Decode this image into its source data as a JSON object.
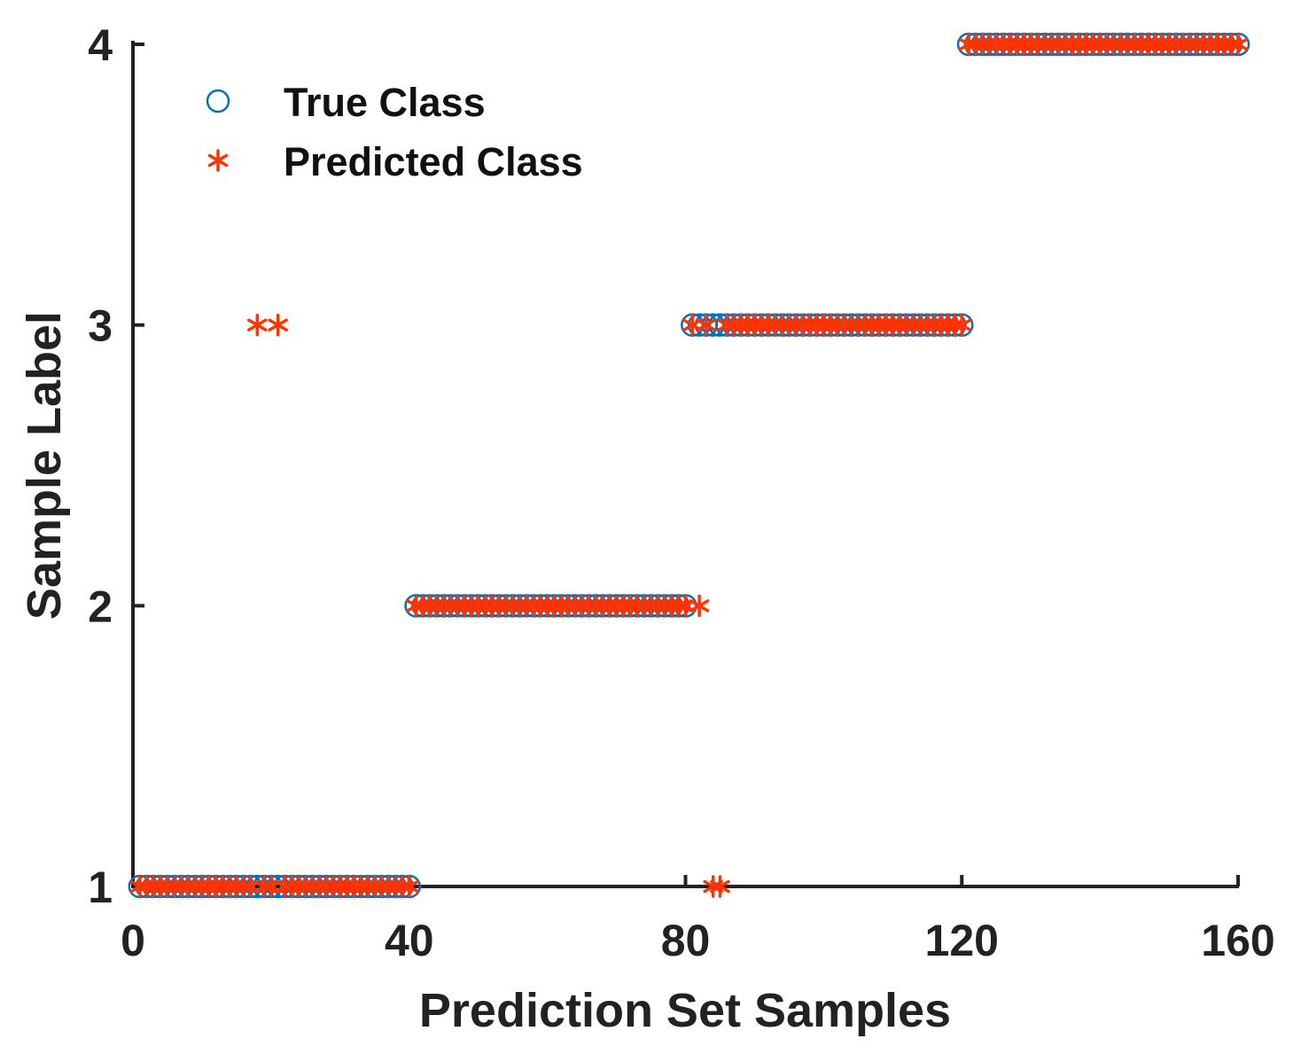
{
  "chart_data": {
    "type": "scatter",
    "title": "",
    "xlabel": "Prediction Set Samples",
    "ylabel": "Sample Label",
    "xlim": [
      0,
      160
    ],
    "ylim": [
      1,
      4
    ],
    "xticks": [
      0,
      40,
      80,
      120,
      160
    ],
    "yticks": [
      1,
      2,
      3,
      4
    ],
    "grid": false,
    "legend_position": "top-left",
    "series": [
      {
        "name": "True Class",
        "marker": "circle",
        "color": "#0072BD",
        "points": [
          [
            1,
            1
          ],
          [
            2,
            1
          ],
          [
            3,
            1
          ],
          [
            4,
            1
          ],
          [
            5,
            1
          ],
          [
            6,
            1
          ],
          [
            7,
            1
          ],
          [
            8,
            1
          ],
          [
            9,
            1
          ],
          [
            10,
            1
          ],
          [
            11,
            1
          ],
          [
            12,
            1
          ],
          [
            13,
            1
          ],
          [
            14,
            1
          ],
          [
            15,
            1
          ],
          [
            16,
            1
          ],
          [
            17,
            1
          ],
          [
            18,
            1
          ],
          [
            19,
            1
          ],
          [
            20,
            1
          ],
          [
            21,
            1
          ],
          [
            22,
            1
          ],
          [
            23,
            1
          ],
          [
            24,
            1
          ],
          [
            25,
            1
          ],
          [
            26,
            1
          ],
          [
            27,
            1
          ],
          [
            28,
            1
          ],
          [
            29,
            1
          ],
          [
            30,
            1
          ],
          [
            31,
            1
          ],
          [
            32,
            1
          ],
          [
            33,
            1
          ],
          [
            34,
            1
          ],
          [
            35,
            1
          ],
          [
            36,
            1
          ],
          [
            37,
            1
          ],
          [
            38,
            1
          ],
          [
            39,
            1
          ],
          [
            40,
            1
          ],
          [
            41,
            2
          ],
          [
            42,
            2
          ],
          [
            43,
            2
          ],
          [
            44,
            2
          ],
          [
            45,
            2
          ],
          [
            46,
            2
          ],
          [
            47,
            2
          ],
          [
            48,
            2
          ],
          [
            49,
            2
          ],
          [
            50,
            2
          ],
          [
            51,
            2
          ],
          [
            52,
            2
          ],
          [
            53,
            2
          ],
          [
            54,
            2
          ],
          [
            55,
            2
          ],
          [
            56,
            2
          ],
          [
            57,
            2
          ],
          [
            58,
            2
          ],
          [
            59,
            2
          ],
          [
            60,
            2
          ],
          [
            61,
            2
          ],
          [
            62,
            2
          ],
          [
            63,
            2
          ],
          [
            64,
            2
          ],
          [
            65,
            2
          ],
          [
            66,
            2
          ],
          [
            67,
            2
          ],
          [
            68,
            2
          ],
          [
            69,
            2
          ],
          [
            70,
            2
          ],
          [
            71,
            2
          ],
          [
            72,
            2
          ],
          [
            73,
            2
          ],
          [
            74,
            2
          ],
          [
            75,
            2
          ],
          [
            76,
            2
          ],
          [
            77,
            2
          ],
          [
            78,
            2
          ],
          [
            79,
            2
          ],
          [
            80,
            2
          ],
          [
            81,
            3
          ],
          [
            82,
            3
          ],
          [
            83,
            3
          ],
          [
            84,
            3
          ],
          [
            85,
            3
          ],
          [
            86,
            3
          ],
          [
            87,
            3
          ],
          [
            88,
            3
          ],
          [
            89,
            3
          ],
          [
            90,
            3
          ],
          [
            91,
            3
          ],
          [
            92,
            3
          ],
          [
            93,
            3
          ],
          [
            94,
            3
          ],
          [
            95,
            3
          ],
          [
            96,
            3
          ],
          [
            97,
            3
          ],
          [
            98,
            3
          ],
          [
            99,
            3
          ],
          [
            100,
            3
          ],
          [
            101,
            3
          ],
          [
            102,
            3
          ],
          [
            103,
            3
          ],
          [
            104,
            3
          ],
          [
            105,
            3
          ],
          [
            106,
            3
          ],
          [
            107,
            3
          ],
          [
            108,
            3
          ],
          [
            109,
            3
          ],
          [
            110,
            3
          ],
          [
            111,
            3
          ],
          [
            112,
            3
          ],
          [
            113,
            3
          ],
          [
            114,
            3
          ],
          [
            115,
            3
          ],
          [
            116,
            3
          ],
          [
            117,
            3
          ],
          [
            118,
            3
          ],
          [
            119,
            3
          ],
          [
            120,
            3
          ],
          [
            121,
            4
          ],
          [
            122,
            4
          ],
          [
            123,
            4
          ],
          [
            124,
            4
          ],
          [
            125,
            4
          ],
          [
            126,
            4
          ],
          [
            127,
            4
          ],
          [
            128,
            4
          ],
          [
            129,
            4
          ],
          [
            130,
            4
          ],
          [
            131,
            4
          ],
          [
            132,
            4
          ],
          [
            133,
            4
          ],
          [
            134,
            4
          ],
          [
            135,
            4
          ],
          [
            136,
            4
          ],
          [
            137,
            4
          ],
          [
            138,
            4
          ],
          [
            139,
            4
          ],
          [
            140,
            4
          ],
          [
            141,
            4
          ],
          [
            142,
            4
          ],
          [
            143,
            4
          ],
          [
            144,
            4
          ],
          [
            145,
            4
          ],
          [
            146,
            4
          ],
          [
            147,
            4
          ],
          [
            148,
            4
          ],
          [
            149,
            4
          ],
          [
            150,
            4
          ],
          [
            151,
            4
          ],
          [
            152,
            4
          ],
          [
            153,
            4
          ],
          [
            154,
            4
          ],
          [
            155,
            4
          ],
          [
            156,
            4
          ],
          [
            157,
            4
          ],
          [
            158,
            4
          ],
          [
            159,
            4
          ],
          [
            160,
            4
          ]
        ]
      },
      {
        "name": "Predicted Class",
        "marker": "asterisk",
        "color": "#FF3300",
        "points": [
          [
            1,
            1
          ],
          [
            2,
            1
          ],
          [
            3,
            1
          ],
          [
            4,
            1
          ],
          [
            5,
            1
          ],
          [
            6,
            1
          ],
          [
            7,
            1
          ],
          [
            8,
            1
          ],
          [
            9,
            1
          ],
          [
            10,
            1
          ],
          [
            11,
            1
          ],
          [
            12,
            1
          ],
          [
            13,
            1
          ],
          [
            14,
            1
          ],
          [
            15,
            1
          ],
          [
            16,
            1
          ],
          [
            17,
            1
          ],
          [
            18,
            3
          ],
          [
            19,
            1
          ],
          [
            20,
            1
          ],
          [
            21,
            3
          ],
          [
            22,
            1
          ],
          [
            23,
            1
          ],
          [
            24,
            1
          ],
          [
            25,
            1
          ],
          [
            26,
            1
          ],
          [
            27,
            1
          ],
          [
            28,
            1
          ],
          [
            29,
            1
          ],
          [
            30,
            1
          ],
          [
            31,
            1
          ],
          [
            32,
            1
          ],
          [
            33,
            1
          ],
          [
            34,
            1
          ],
          [
            35,
            1
          ],
          [
            36,
            1
          ],
          [
            37,
            1
          ],
          [
            38,
            1
          ],
          [
            39,
            1
          ],
          [
            40,
            1
          ],
          [
            41,
            2
          ],
          [
            42,
            2
          ],
          [
            43,
            2
          ],
          [
            44,
            2
          ],
          [
            45,
            2
          ],
          [
            46,
            2
          ],
          [
            47,
            2
          ],
          [
            48,
            2
          ],
          [
            49,
            2
          ],
          [
            50,
            2
          ],
          [
            51,
            2
          ],
          [
            52,
            2
          ],
          [
            53,
            2
          ],
          [
            54,
            2
          ],
          [
            55,
            2
          ],
          [
            56,
            2
          ],
          [
            57,
            2
          ],
          [
            58,
            2
          ],
          [
            59,
            2
          ],
          [
            60,
            2
          ],
          [
            61,
            2
          ],
          [
            62,
            2
          ],
          [
            63,
            2
          ],
          [
            64,
            2
          ],
          [
            65,
            2
          ],
          [
            66,
            2
          ],
          [
            67,
            2
          ],
          [
            68,
            2
          ],
          [
            69,
            2
          ],
          [
            70,
            2
          ],
          [
            71,
            2
          ],
          [
            72,
            2
          ],
          [
            73,
            2
          ],
          [
            74,
            2
          ],
          [
            75,
            2
          ],
          [
            76,
            2
          ],
          [
            77,
            2
          ],
          [
            78,
            2
          ],
          [
            79,
            2
          ],
          [
            80,
            2
          ],
          [
            81,
            3
          ],
          [
            82,
            2
          ],
          [
            83,
            3
          ],
          [
            84,
            1
          ],
          [
            85,
            1
          ],
          [
            86,
            3
          ],
          [
            87,
            3
          ],
          [
            88,
            3
          ],
          [
            89,
            3
          ],
          [
            90,
            3
          ],
          [
            91,
            3
          ],
          [
            92,
            3
          ],
          [
            93,
            3
          ],
          [
            94,
            3
          ],
          [
            95,
            3
          ],
          [
            96,
            3
          ],
          [
            97,
            3
          ],
          [
            98,
            3
          ],
          [
            99,
            3
          ],
          [
            100,
            3
          ],
          [
            101,
            3
          ],
          [
            102,
            3
          ],
          [
            103,
            3
          ],
          [
            104,
            3
          ],
          [
            105,
            3
          ],
          [
            106,
            3
          ],
          [
            107,
            3
          ],
          [
            108,
            3
          ],
          [
            109,
            3
          ],
          [
            110,
            3
          ],
          [
            111,
            3
          ],
          [
            112,
            3
          ],
          [
            113,
            3
          ],
          [
            114,
            3
          ],
          [
            115,
            3
          ],
          [
            116,
            3
          ],
          [
            117,
            3
          ],
          [
            118,
            3
          ],
          [
            119,
            3
          ],
          [
            120,
            3
          ],
          [
            121,
            4
          ],
          [
            122,
            4
          ],
          [
            123,
            4
          ],
          [
            124,
            4
          ],
          [
            125,
            4
          ],
          [
            126,
            4
          ],
          [
            127,
            4
          ],
          [
            128,
            4
          ],
          [
            129,
            4
          ],
          [
            130,
            4
          ],
          [
            131,
            4
          ],
          [
            132,
            4
          ],
          [
            133,
            4
          ],
          [
            134,
            4
          ],
          [
            135,
            4
          ],
          [
            136,
            4
          ],
          [
            137,
            4
          ],
          [
            138,
            4
          ],
          [
            139,
            4
          ],
          [
            140,
            4
          ],
          [
            141,
            4
          ],
          [
            142,
            4
          ],
          [
            143,
            4
          ],
          [
            144,
            4
          ],
          [
            145,
            4
          ],
          [
            146,
            4
          ],
          [
            147,
            4
          ],
          [
            148,
            4
          ],
          [
            149,
            4
          ],
          [
            150,
            4
          ],
          [
            151,
            4
          ],
          [
            152,
            4
          ],
          [
            153,
            4
          ],
          [
            154,
            4
          ],
          [
            155,
            4
          ],
          [
            156,
            4
          ],
          [
            157,
            4
          ],
          [
            158,
            4
          ],
          [
            159,
            4
          ],
          [
            160,
            4
          ]
        ]
      }
    ]
  }
}
